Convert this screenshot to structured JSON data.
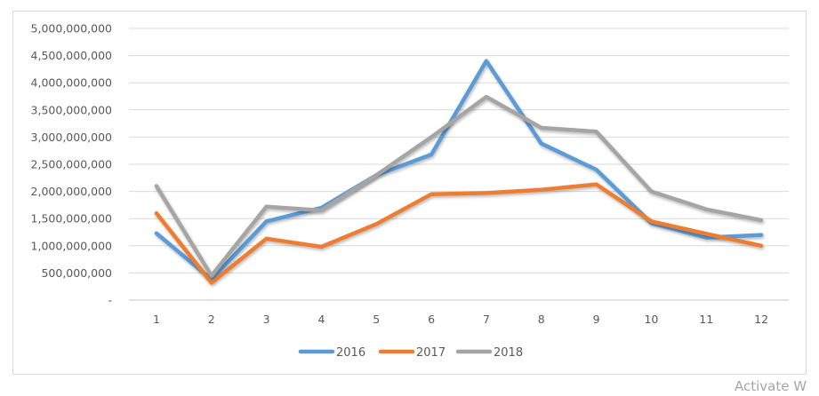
{
  "chart_data": {
    "type": "line",
    "title": "",
    "xlabel": "",
    "ylabel": "",
    "categories": [
      "1",
      "2",
      "3",
      "4",
      "5",
      "6",
      "7",
      "8",
      "9",
      "10",
      "11",
      "12"
    ],
    "ylim": [
      0,
      5000000000
    ],
    "yticks": [
      0,
      500000000,
      1000000000,
      1500000000,
      2000000000,
      2500000000,
      3000000000,
      3500000000,
      4000000000,
      4500000000,
      5000000000
    ],
    "ytick_labels": [
      "-",
      "500,000,000",
      "1,000,000,000",
      "1,500,000,000",
      "2,000,000,000",
      "2,500,000,000",
      "3,000,000,000",
      "3,500,000,000",
      "4,000,000,000",
      "4,500,000,000",
      "5,000,000,000"
    ],
    "grid": true,
    "legend_position": "bottom",
    "series": [
      {
        "name": "2016",
        "color": "#5b9bd5",
        "values": [
          1230000000,
          380000000,
          1450000000,
          1700000000,
          2300000000,
          2680000000,
          4400000000,
          2880000000,
          2400000000,
          1420000000,
          1150000000,
          1200000000
        ]
      },
      {
        "name": "2017",
        "color": "#ed7d31",
        "values": [
          1600000000,
          320000000,
          1130000000,
          980000000,
          1400000000,
          1950000000,
          1970000000,
          2030000000,
          2130000000,
          1450000000,
          1220000000,
          1000000000
        ]
      },
      {
        "name": "2018",
        "color": "#a5a5a5",
        "values": [
          2100000000,
          450000000,
          1720000000,
          1650000000,
          2300000000,
          3000000000,
          3740000000,
          3170000000,
          3100000000,
          2000000000,
          1670000000,
          1470000000
        ]
      }
    ]
  },
  "watermark": "Activate W"
}
